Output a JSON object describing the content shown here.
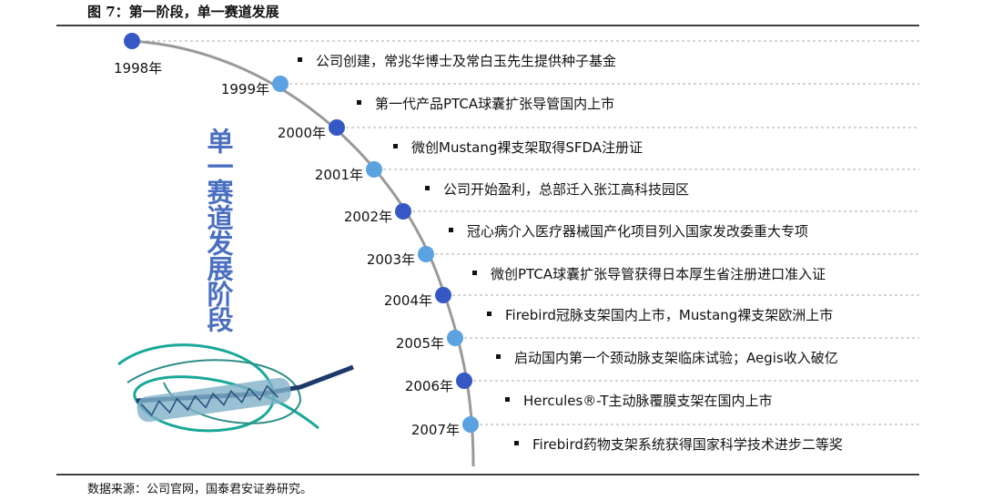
{
  "header": {
    "title": "图 7：第一阶段，单一赛道发展"
  },
  "side_label": "单一赛道发展阶段",
  "milestones": [
    {
      "year": "1998年",
      "text": "公司创建，常兆华博士及常白玉先生提供种子基金"
    },
    {
      "year": "1999年",
      "text": "第一代产品PTCA球囊扩张导管国内上市"
    },
    {
      "year": "2000年",
      "text": "微创Mustang裸支架取得SFDA注册证"
    },
    {
      "year": "2001年",
      "text": "公司开始盈利，总部迁入张江高科技园区"
    },
    {
      "year": "2002年",
      "text": "冠心病介入医疗器械国产化项目列入国家发改委重大专项"
    },
    {
      "year": "2003年",
      "text": "微创PTCA球囊扩张导管获得日本厚生省注册进口准入证"
    },
    {
      "year": "2004年",
      "text": "Firebird冠脉支架国内上市，Mustang裸支架欧洲上市"
    },
    {
      "year": "2005年",
      "text": "启动国内第一个颈动脉支架临床试验；Aegis收入破亿"
    },
    {
      "year": "2006年",
      "text": "Hercules®-T主动脉覆膜支架在国内上市"
    },
    {
      "year": "2007年",
      "text": "Firebird药物支架系统获得国家科学技术进步二等奖"
    }
  ],
  "source": "数据来源：公司官网，国泰君安证券研究。"
}
